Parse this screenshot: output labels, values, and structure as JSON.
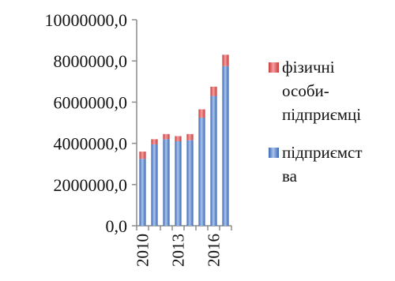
{
  "chart_data": {
    "type": "bar",
    "stacked": true,
    "categories": [
      "2010",
      "2011",
      "2012",
      "2013",
      "2014",
      "2015",
      "2016",
      "2017"
    ],
    "x_tick_labels_shown": [
      "2010",
      "2013",
      "2016"
    ],
    "series": [
      {
        "name": "підприємства",
        "legend_lines": [
          "підприємст",
          "ва"
        ],
        "color": "#4F7EC2",
        "values": [
          3250000,
          3950000,
          4200000,
          4100000,
          4150000,
          5250000,
          6300000,
          7750000
        ]
      },
      {
        "name": "фізичні особи-підприємці",
        "legend_lines": [
          "фізичні",
          "особи-",
          "підприємці"
        ],
        "color": "#E24B4B",
        "values": [
          350000,
          250000,
          250000,
          250000,
          300000,
          400000,
          450000,
          550000
        ]
      }
    ],
    "y_ticks": [
      "0,0",
      "2000000,0",
      "4000000,0",
      "6000000,0",
      "8000000,0",
      "10000000,0"
    ],
    "ylim": [
      0,
      10000000
    ],
    "grid": false,
    "legend_position": "right"
  }
}
